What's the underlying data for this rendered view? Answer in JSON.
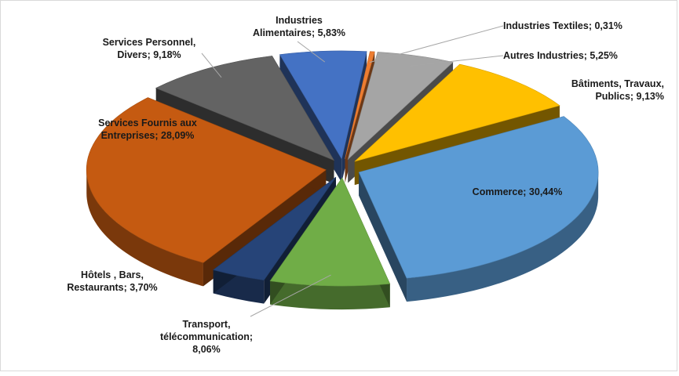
{
  "chart_data": {
    "type": "pie",
    "title": "",
    "style": "3d-exploded",
    "legend": "none",
    "slices": [
      {
        "label": "Industries Textiles",
        "value": 0.31,
        "display": "Industries Textiles; 0,31%",
        "color": "#ed7d31"
      },
      {
        "label": "Autres Industries",
        "value": 5.25,
        "display": "Autres Industries; 5,25%",
        "color": "#a5a5a5"
      },
      {
        "label": "Bâtiments, Travaux, Publics",
        "value": 9.13,
        "display": "Bâtiments, Travaux, Publics; 9,13%",
        "color": "#ffc000"
      },
      {
        "label": "Commerce",
        "value": 30.44,
        "display": "Commerce; 30,44%",
        "color": "#5b9bd5"
      },
      {
        "label": "Transport, télécommunication",
        "value": 8.06,
        "display": "Transport, télécommunication; 8,06%",
        "color": "#70ad47"
      },
      {
        "label": "Hôtels , Bars, Restaurants",
        "value": 3.7,
        "display": "Hôtels , Bars, Restaurants; 3,70%",
        "color": "#264478"
      },
      {
        "label": "Services Fournis aux Entreprises",
        "value": 28.09,
        "display": "Services Fournis aux Entreprises; 28,09%",
        "color": "#c55a11"
      },
      {
        "label": "Services Personnel, Divers",
        "value": 9.18,
        "display": "Services Personnel, Divers; 9,18%",
        "color": "#636363"
      },
      {
        "label": "Industries Alimentaires",
        "value": 5.83,
        "display": "Industries Alimentaires; 5,83%",
        "color": "#4472c4"
      }
    ]
  }
}
